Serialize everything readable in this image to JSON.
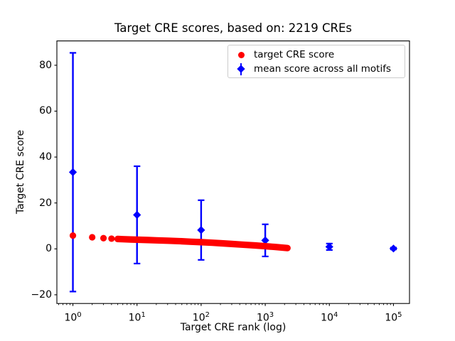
{
  "figure": {
    "background": "#ffffff",
    "text_color": "#000000"
  },
  "chart_data": {
    "type": "scatter",
    "title": "Target CRE scores, based on: 2219 CREs",
    "xlabel": "Target CRE rank (log)",
    "ylabel": "Target CRE score",
    "xscale": "log",
    "xlim": [
      0.5623,
      177828
    ],
    "ylim": [
      -23.8,
      90.6
    ],
    "xtick_exponents": [
      0,
      1,
      2,
      3,
      4,
      5
    ],
    "xtick_base": "10",
    "yticks": [
      -20,
      0,
      20,
      40,
      60,
      80
    ],
    "grid": false,
    "legend_position": "upper right",
    "series": [
      {
        "name": "target CRE score",
        "kind": "scatter",
        "marker": "circle",
        "color": "#ff0000",
        "n_points": 2219,
        "anchors": [
          [
            1,
            5.8
          ],
          [
            2,
            5.05
          ],
          [
            3,
            4.65
          ],
          [
            4,
            4.45
          ],
          [
            5,
            4.3
          ],
          [
            6,
            4.2
          ],
          [
            8,
            4.1
          ],
          [
            10,
            4.0
          ],
          [
            15,
            3.85
          ],
          [
            20,
            3.72
          ],
          [
            30,
            3.55
          ],
          [
            50,
            3.3
          ],
          [
            70,
            3.1
          ],
          [
            100,
            2.9
          ],
          [
            150,
            2.65
          ],
          [
            200,
            2.45
          ],
          [
            300,
            2.15
          ],
          [
            500,
            1.75
          ],
          [
            700,
            1.5
          ],
          [
            1000,
            1.15
          ],
          [
            1400,
            0.85
          ],
          [
            1800,
            0.6
          ],
          [
            2219,
            0.35
          ]
        ]
      },
      {
        "name": "mean score across all motifs",
        "kind": "errorbar",
        "marker": "diamond",
        "color": "#0000ff",
        "x": [
          1,
          10,
          100,
          1000,
          10000,
          100000
        ],
        "y": [
          33.4,
          14.8,
          8.2,
          3.7,
          0.9,
          0.15
        ],
        "yerr": [
          52.0,
          21.2,
          13.0,
          7.0,
          1.4,
          0.4
        ]
      }
    ]
  }
}
